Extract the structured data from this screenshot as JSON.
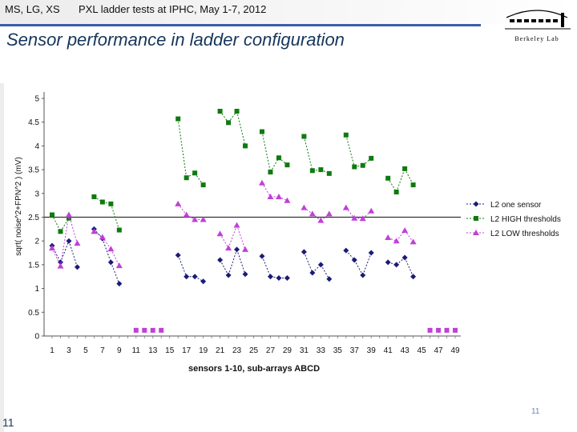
{
  "header": {
    "authors": "MS, LG, XS",
    "workshop": "PXL ladder tests at IPHC, May 1-7, 2012",
    "logo_text": "Berkeley Lab"
  },
  "slide_title": "Sensor performance in ladder configuration",
  "page_number": "11",
  "colors": {
    "series_one": "#1b1b7a",
    "series_high": "#0f7a0f",
    "series_low": "#c040d8",
    "noise_marker": "#c040d8",
    "title": "#16365c",
    "rule": "#3b5ea8"
  },
  "chart_data": {
    "type": "line",
    "xlabel": "sensors 1-10, sub-arrays ABCD",
    "ylabel": "sqrt( noise^2+FPN^2 ) (mV)",
    "ylim": [
      0,
      5
    ],
    "yticks": [
      0,
      0.5,
      1,
      1.5,
      2,
      2.5,
      3,
      3.5,
      4,
      4.5,
      5
    ],
    "ytick_labels": [
      "0",
      "0.5",
      "1",
      "1.5",
      "2",
      "2.5",
      "3",
      "3.5",
      "4",
      "4.5",
      "5"
    ],
    "x_range": [
      1,
      49
    ],
    "xticks": [
      1,
      3,
      5,
      7,
      9,
      11,
      13,
      15,
      17,
      19,
      21,
      23,
      25,
      27,
      29,
      31,
      33,
      35,
      37,
      39,
      41,
      43,
      45,
      47,
      49
    ],
    "xtick_labels": [
      "1",
      "3",
      "5",
      "7",
      "9",
      "11",
      "13",
      "15",
      "17",
      "19",
      "21",
      "23",
      "25",
      "27",
      "29",
      "31",
      "33",
      "35",
      "37",
      "39",
      "41",
      "43",
      "45",
      "47",
      "49"
    ],
    "grid": false,
    "legend_position": "right",
    "series": [
      {
        "name": "L2 one sensor",
        "marker": "diamond",
        "x": [
          1,
          2,
          3,
          4,
          6,
          7,
          8,
          9,
          16,
          17,
          18,
          19,
          21,
          22,
          23,
          24,
          26,
          27,
          28,
          29,
          31,
          32,
          33,
          34,
          36,
          37,
          38,
          39,
          41,
          42,
          43,
          44
        ],
        "values": [
          1.9,
          1.55,
          2.0,
          1.45,
          2.25,
          2.05,
          1.55,
          1.1,
          1.7,
          1.25,
          1.25,
          1.15,
          1.6,
          1.28,
          1.82,
          1.3,
          1.68,
          1.25,
          1.22,
          1.22,
          1.77,
          1.33,
          1.5,
          1.2,
          1.8,
          1.6,
          1.28,
          1.75,
          1.55,
          1.5,
          1.65,
          1.25
        ]
      },
      {
        "name": "L2 HIGH thresholds",
        "marker": "square",
        "x": [
          1,
          2,
          3,
          6,
          7,
          8,
          9,
          16,
          17,
          18,
          19,
          21,
          22,
          23,
          24,
          26,
          27,
          28,
          29,
          31,
          32,
          33,
          34,
          36,
          37,
          38,
          39,
          41,
          42,
          43,
          44
        ],
        "values": [
          2.55,
          2.2,
          2.48,
          2.93,
          2.82,
          2.78,
          2.23,
          4.57,
          3.33,
          3.43,
          3.18,
          4.73,
          4.49,
          4.73,
          4.0,
          4.3,
          3.45,
          3.75,
          3.6,
          4.2,
          3.48,
          3.5,
          3.42,
          4.23,
          3.56,
          3.59,
          3.74,
          3.32,
          3.03,
          3.52,
          3.18
        ]
      },
      {
        "name": "L2 LOW thresholds",
        "marker": "triangle",
        "x": [
          1,
          2,
          3,
          4,
          6,
          7,
          8,
          9,
          16,
          17,
          18,
          19,
          21,
          22,
          23,
          24,
          26,
          27,
          28,
          29,
          31,
          32,
          33,
          34,
          36,
          37,
          38,
          39,
          41,
          42,
          43,
          44
        ],
        "values": [
          1.85,
          1.47,
          2.55,
          1.95,
          2.2,
          2.08,
          1.83,
          1.48,
          2.78,
          2.55,
          2.45,
          2.45,
          2.15,
          1.85,
          2.33,
          1.82,
          3.22,
          2.93,
          2.93,
          2.85,
          2.7,
          2.57,
          2.43,
          2.57,
          2.7,
          2.48,
          2.47,
          2.63,
          2.07,
          2.0,
          2.22,
          1.98
        ]
      }
    ],
    "extra_points": {
      "name": "noise-only markers",
      "x": [
        11,
        12,
        13,
        14,
        46,
        47,
        48,
        49
      ],
      "values": [
        0.12,
        0.12,
        0.12,
        0.12,
        0.12,
        0.12,
        0.12,
        0.12
      ]
    },
    "reference_line": {
      "value": 2.5
    }
  }
}
